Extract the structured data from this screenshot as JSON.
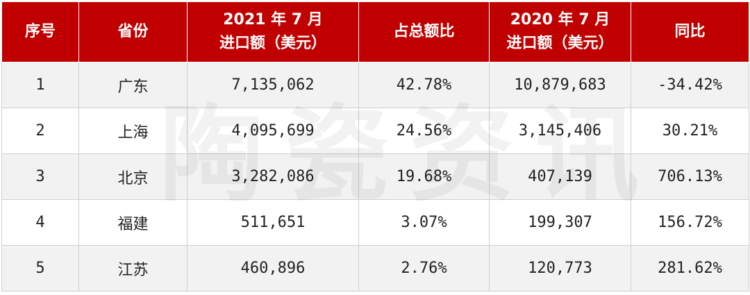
{
  "table": {
    "headers": [
      {
        "line1": "序号",
        "line2": ""
      },
      {
        "line1": "省份",
        "line2": ""
      },
      {
        "line1": "2021 年 7 月",
        "line2": "进口额（美元）"
      },
      {
        "line1": "占总额比",
        "line2": ""
      },
      {
        "line1": "2020 年 7 月",
        "line2": "进口额（美元）"
      },
      {
        "line1": "同比",
        "line2": ""
      }
    ],
    "rows": [
      [
        "1",
        "广东",
        "7,135,062",
        "42.78%",
        "10,879,683",
        "-34.42%"
      ],
      [
        "2",
        "上海",
        "4,095,699",
        "24.56%",
        "3,145,406",
        "30.21%"
      ],
      [
        "3",
        "北京",
        "3,282,086",
        "19.68%",
        "407,139",
        "706.13%"
      ],
      [
        "4",
        "福建",
        "511,651",
        "3.07%",
        "199,307",
        "156.72%"
      ],
      [
        "5",
        "江苏",
        "460,896",
        "2.76%",
        "120,773",
        "281.62%"
      ]
    ]
  },
  "watermark": "陶瓷资讯",
  "colors": {
    "header_bg": "#c00000",
    "header_text": "#ffffff",
    "odd_row_bg": "#f2f2f2"
  }
}
